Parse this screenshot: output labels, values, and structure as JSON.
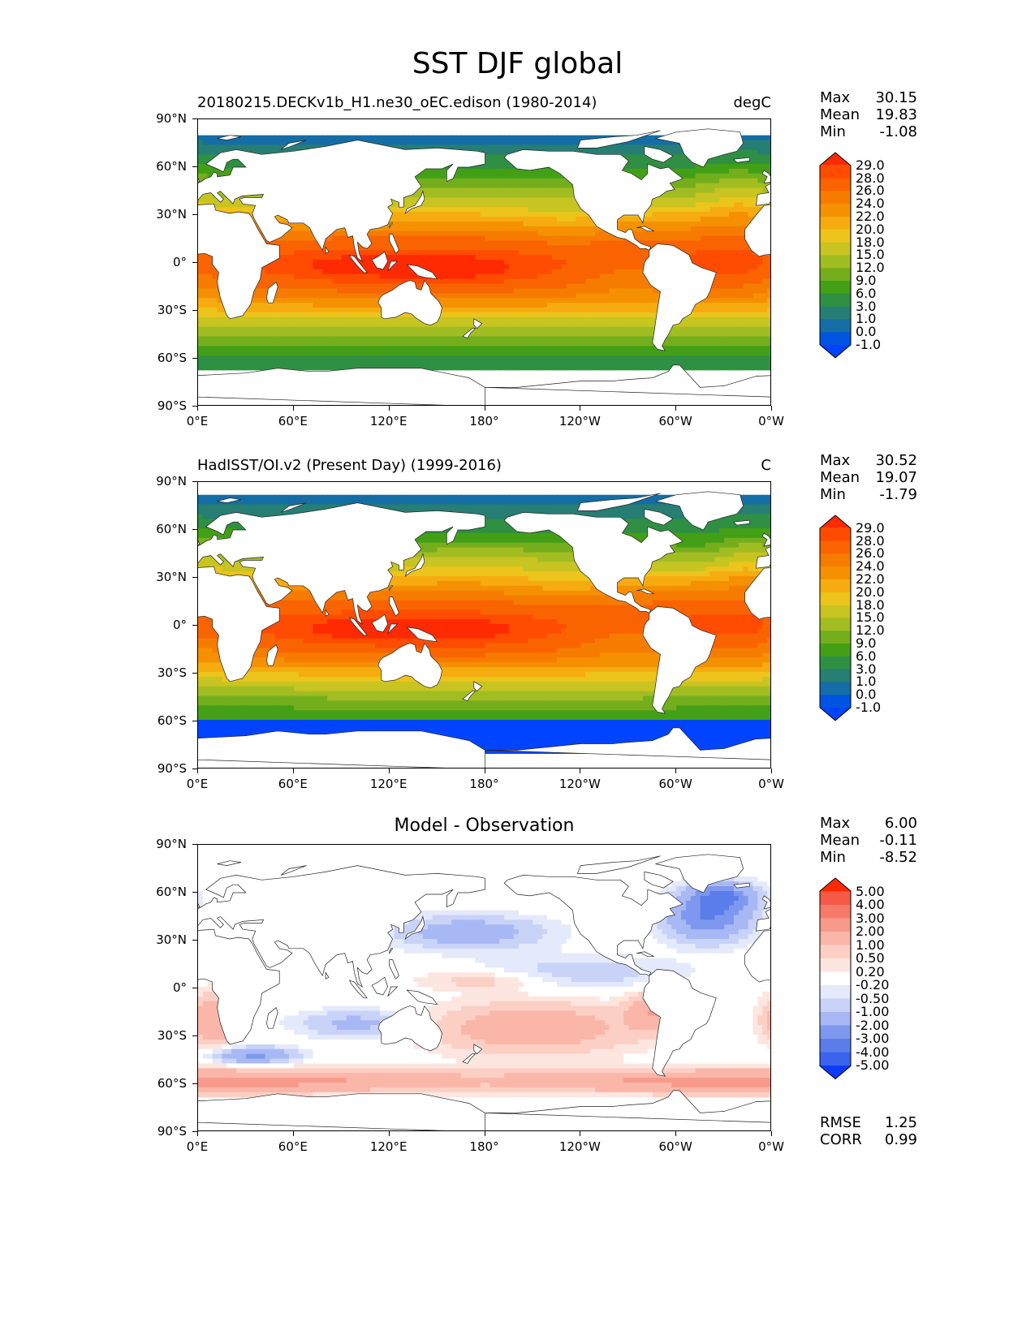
{
  "figure": {
    "title": "SST DJF global"
  },
  "axes": {
    "lat_ticks": [
      "90°N",
      "60°N",
      "30°N",
      "0°",
      "30°S",
      "60°S",
      "90°S"
    ],
    "lon_ticks": [
      "0°E",
      "60°E",
      "120°E",
      "180°",
      "120°W",
      "60°W",
      "0°W"
    ]
  },
  "panels": [
    {
      "title": "20180215.DECKv1b_H1.ne30_oEC.edison (1980-2014)",
      "units": "degC",
      "stats": {
        "max_label": "Max",
        "max": "30.15",
        "mean_label": "Mean",
        "mean": "19.83",
        "min_label": "Min",
        "min": "-1.08"
      },
      "colorbar": {
        "levels": [
          "29.0",
          "28.0",
          "26.0",
          "24.0",
          "22.0",
          "20.0",
          "18.0",
          "15.0",
          "12.0",
          "9.0",
          "6.0",
          "3.0",
          "1.0",
          "0.0",
          "-1.0"
        ],
        "colors": [
          "#ff2a00",
          "#ff4c00",
          "#fa6400",
          "#f67c00",
          "#f59100",
          "#f6ac10",
          "#ecc41c",
          "#c8c421",
          "#a2bd22",
          "#74ae1d",
          "#43a016",
          "#2f8f43",
          "#267e74",
          "#146ea5",
          "#0055e0",
          "#0044ff"
        ]
      }
    },
    {
      "title": "HadISST/OI.v2 (Present Day) (1999-2016)",
      "units": "C",
      "stats": {
        "max_label": "Max",
        "max": "30.52",
        "mean_label": "Mean",
        "mean": "19.07",
        "min_label": "Min",
        "min": "-1.79"
      },
      "colorbar": {
        "levels": [
          "29.0",
          "28.0",
          "26.0",
          "24.0",
          "22.0",
          "20.0",
          "18.0",
          "15.0",
          "12.0",
          "9.0",
          "6.0",
          "3.0",
          "1.0",
          "0.0",
          "-1.0"
        ],
        "colors": [
          "#ff2a00",
          "#ff4c00",
          "#fa6400",
          "#f67c00",
          "#f59100",
          "#f6ac10",
          "#ecc41c",
          "#c8c421",
          "#a2bd22",
          "#74ae1d",
          "#43a016",
          "#2f8f43",
          "#267e74",
          "#146ea5",
          "#0055e0",
          "#0044ff"
        ]
      }
    },
    {
      "title": "Model - Observation",
      "units": "",
      "stats": {
        "max_label": "Max",
        "max": "6.00",
        "mean_label": "Mean",
        "mean": "-0.11",
        "min_label": "Min",
        "min": "-8.52"
      },
      "metrics": {
        "rmse_label": "RMSE",
        "rmse": "1.25",
        "corr_label": "CORR",
        "corr": "0.99"
      },
      "colorbar": {
        "levels": [
          "5.00",
          "4.00",
          "3.00",
          "2.00",
          "1.00",
          "0.50",
          "0.20",
          "-0.20",
          "-0.50",
          "-1.00",
          "-2.00",
          "-3.00",
          "-4.00",
          "-5.00"
        ],
        "colors": [
          "#ff2a00",
          "#f65a46",
          "#f57a68",
          "#f79a8a",
          "#fab6a8",
          "#fccfc4",
          "#fde6e0",
          "#ffffff",
          "#e4e9fb",
          "#c9d3f8",
          "#a8b8f5",
          "#7f98ef",
          "#5b7de9",
          "#3a63ee",
          "#0b3cff"
        ]
      }
    }
  ]
}
